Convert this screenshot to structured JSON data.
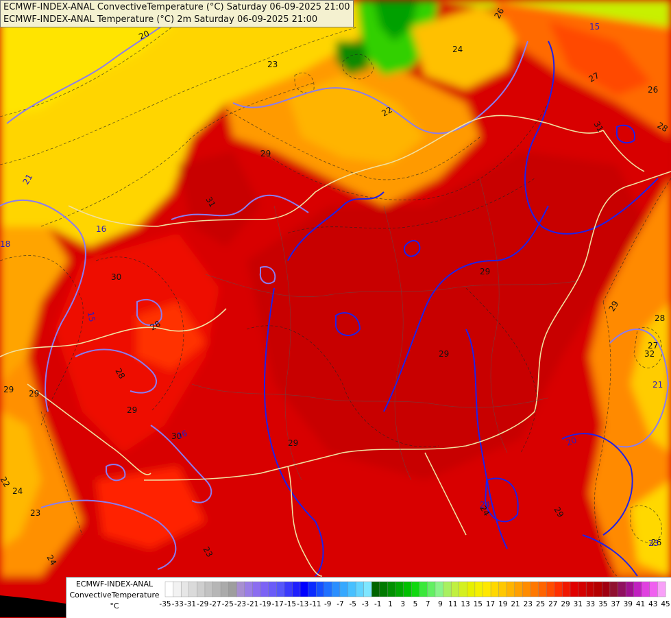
{
  "titles": {
    "line1": "ECMWF-INDEX-ANAL ConvectiveTemperature (°C) Saturday 06-09-2025 21:00",
    "line2": "ECMWF-INDEX-ANAL Temperature (°C) 2m Saturday 06-09-2025 21:00"
  },
  "legend": {
    "model": "ECMWF-INDEX-ANAL",
    "parameter": "ConvectiveTemperature",
    "unit": "°C",
    "tick_labels": [
      "-35",
      "-33",
      "-31",
      "-29",
      "-27",
      "-25",
      "-23",
      "-21",
      "-19",
      "-17",
      "-15",
      "-13",
      "-11",
      "-9",
      "-7",
      "-5",
      "-3",
      "-1",
      "1",
      "3",
      "5",
      "7",
      "9",
      "11",
      "13",
      "15",
      "17",
      "19",
      "21",
      "23",
      "25",
      "27",
      "29",
      "31",
      "33",
      "35",
      "37",
      "39",
      "41",
      "43",
      "45"
    ],
    "colors": [
      "#ffffff",
      "#f2f2f2",
      "#e6e6e6",
      "#dadada",
      "#cecece",
      "#c2c2c2",
      "#b6b6b6",
      "#aaaaaa",
      "#9e9e9e",
      "#a78fd0",
      "#9a7ee6",
      "#8b6df0",
      "#7c63f5",
      "#6a5cf8",
      "#5656fa",
      "#3a3afc",
      "#1f1ffd",
      "#0000ff",
      "#0a2bff",
      "#1450ff",
      "#1f70ff",
      "#2a8eff",
      "#36a8ff",
      "#48c0ff",
      "#62d4ff",
      "#7fe6ff",
      "#006400",
      "#007a00",
      "#009000",
      "#00a800",
      "#00c000",
      "#10d810",
      "#3ae83a",
      "#62f062",
      "#8af48a",
      "#a8f060",
      "#c0f040",
      "#d4f020",
      "#e6f000",
      "#f4f000",
      "#ffe800",
      "#ffd800",
      "#ffc800",
      "#ffb400",
      "#ffa000",
      "#ff8c00",
      "#ff7800",
      "#ff6400",
      "#ff4c00",
      "#ff3000",
      "#f01800",
      "#e00000",
      "#d40000",
      "#c40000",
      "#b40000",
      "#a00010",
      "#901030",
      "#901060",
      "#a01090",
      "#c020c0",
      "#e040e0",
      "#f060f0",
      "#f8a0f8"
    ]
  },
  "map_labels": {
    "convective_temp": [
      "20",
      "23",
      "26",
      "24",
      "22",
      "27",
      "26",
      "28",
      "29",
      "31",
      "30",
      "29",
      "28",
      "28",
      "29",
      "29",
      "24",
      "22",
      "23",
      "24",
      "29",
      "28",
      "27",
      "26",
      "23",
      "29",
      "30",
      "29",
      "31",
      "24",
      "29",
      "29",
      "32"
    ],
    "temperature_2m": [
      "15",
      "15",
      "16",
      "21",
      "16",
      "20",
      "24",
      "18",
      "21",
      "23"
    ]
  }
}
